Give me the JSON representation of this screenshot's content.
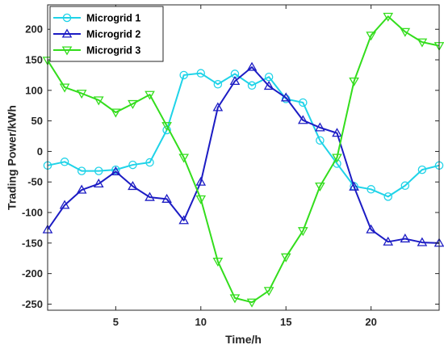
{
  "chart_data": {
    "type": "line",
    "xlabel": "Time/h",
    "ylabel": "Trading Power/kWh",
    "xlim": [
      1,
      24
    ],
    "ylim": [
      -260,
      240
    ],
    "xticks": [
      5,
      10,
      15,
      20
    ],
    "yticks": [
      -250,
      -200,
      -150,
      -100,
      -50,
      0,
      50,
      100,
      150,
      200
    ],
    "grid": false,
    "legend_position": "top-left",
    "x": [
      1,
      2,
      3,
      4,
      5,
      6,
      7,
      8,
      9,
      10,
      11,
      12,
      13,
      14,
      15,
      16,
      17,
      18,
      19,
      20,
      21,
      22,
      23,
      24
    ],
    "series": [
      {
        "name": "Microgrid 1",
        "color": "#1fd3e8",
        "marker": "circle",
        "values": [
          -23,
          -17,
          -32,
          -32,
          -30,
          -22,
          -18,
          35,
          125,
          128,
          110,
          127,
          108,
          122,
          86,
          80,
          18,
          -20,
          -57,
          -62,
          -74,
          -56,
          -30,
          -23
        ]
      },
      {
        "name": "Microgrid 2",
        "color": "#1c1cc4",
        "marker": "triangle-up",
        "values": [
          -128,
          -88,
          -63,
          -53,
          -33,
          -57,
          -75,
          -78,
          -113,
          -50,
          72,
          115,
          138,
          107,
          88,
          51,
          39,
          30,
          -58,
          -128,
          -148,
          -143,
          -149,
          -150
        ]
      },
      {
        "name": "Microgrid 3",
        "color": "#33dd1c",
        "marker": "triangle-down",
        "values": [
          149,
          105,
          95,
          84,
          64,
          78,
          93,
          42,
          -10,
          -78,
          -180,
          -240,
          -247,
          -228,
          -173,
          -130,
          -57,
          -10,
          115,
          190,
          221,
          196,
          179,
          173
        ]
      }
    ]
  }
}
